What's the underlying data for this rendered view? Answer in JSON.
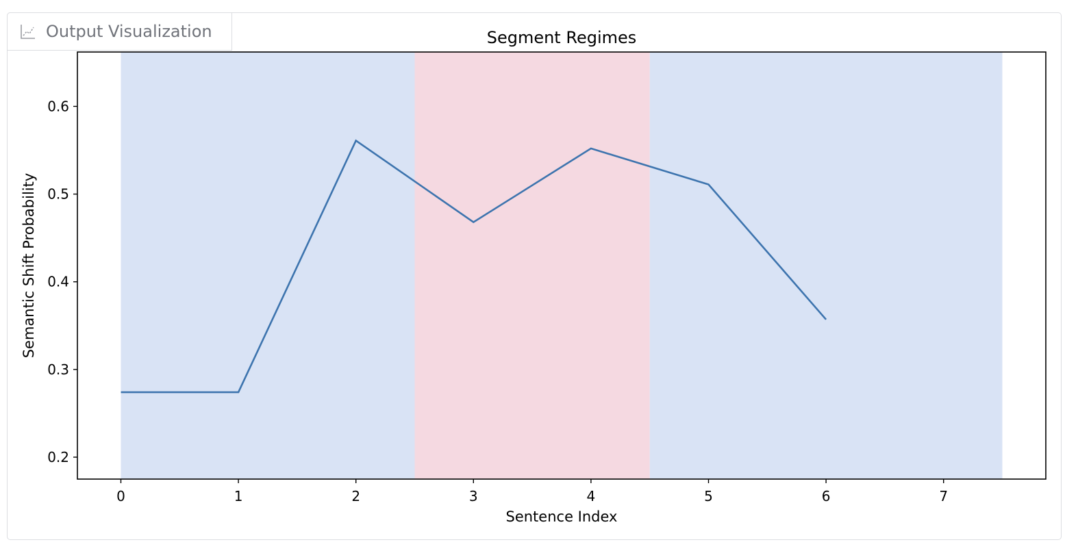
{
  "panel": {
    "tab_label": "Output Visualization",
    "tab_icon": "chart-icon"
  },
  "chart_data": {
    "type": "line",
    "title": "Segment Regimes",
    "xlabel": "Sentence Index",
    "ylabel": "Semantic Shift Probability",
    "x": [
      0,
      1,
      2,
      3,
      4,
      5,
      6
    ],
    "series": [
      {
        "values": [
          0.274,
          0.274,
          0.561,
          0.468,
          0.552,
          0.511,
          0.357
        ],
        "color": "#3d74ae"
      }
    ],
    "regimes": [
      {
        "start": 0,
        "end": 2.5,
        "color": "#d9e3f5"
      },
      {
        "start": 2.5,
        "end": 4.5,
        "color": "#f5d9e1"
      },
      {
        "start": 4.5,
        "end": 7.5,
        "color": "#d9e3f5"
      }
    ],
    "xlim": [
      -0.37,
      7.87
    ],
    "ylim": [
      0.175,
      0.662
    ],
    "xticks": [
      0,
      1,
      2,
      3,
      4,
      5,
      6,
      7
    ],
    "yticks": [
      0.2,
      0.3,
      0.4,
      0.5,
      0.6
    ],
    "ytick_labels": [
      "0.2",
      "0.3",
      "0.4",
      "0.5",
      "0.6"
    ],
    "grid": false,
    "legend": false
  }
}
